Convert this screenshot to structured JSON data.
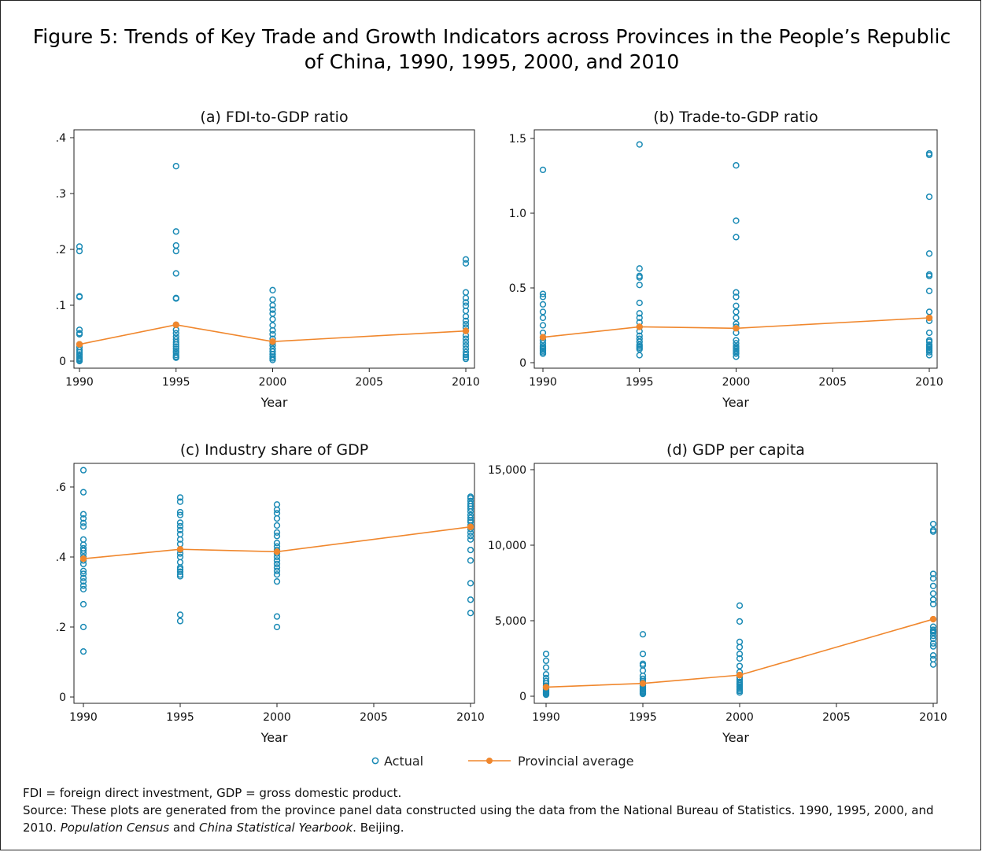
{
  "figure": {
    "title": "Figure 5: Trends of Key Trade and Growth Indicators across Provinces in the People’s Republic of China, 1990, 1995, 2000, and 2010"
  },
  "legend": {
    "actual": "Actual",
    "average": "Provincial average",
    "colors": {
      "actual": "#1a8ab5",
      "average": "#f0872d"
    }
  },
  "notes": {
    "abbreviations": "FDI = foreign direct investment, GDP = gross domestic product.",
    "source_prefix": "Source: These plots are generated from the province panel data constructed using the data from the National Bureau of Statistics. 1990, 1995, 2000, and 2010.",
    "source_italic_1": "Population Census",
    "source_and": "and",
    "source_italic_2": "China Statistical Yearbook",
    "source_suffix": ". Beijing."
  },
  "chart_data": [
    {
      "type": "scatter",
      "title": "(a) FDI-to-GDP ratio",
      "xlabel": "Year",
      "ylabel": "",
      "xlim": [
        1990,
        2010
      ],
      "ylim": [
        0,
        0.4
      ],
      "xticks": [
        1990,
        1995,
        2000,
        2005,
        2010
      ],
      "xtick_labels": [
        "1990",
        "1995",
        "2000",
        "2005",
        "2010"
      ],
      "yticks": [
        0,
        0.1,
        0.2,
        0.3,
        0.4
      ],
      "ytick_labels": [
        "0",
        ".1",
        ".2",
        ".3",
        ".4"
      ],
      "series": [
        {
          "name": "Actual",
          "style": "hollow-circle",
          "points": {
            "1990": [
              0.205,
              0.197,
              0.116,
              0.115,
              0.056,
              0.05,
              0.048,
              0.03,
              0.025,
              0.02,
              0.016,
              0.012,
              0.009,
              0.006,
              0.004,
              0.002,
              0.0
            ],
            "1995": [
              0.349,
              0.232,
              0.207,
              0.197,
              0.157,
              0.113,
              0.112,
              0.065,
              0.056,
              0.05,
              0.044,
              0.039,
              0.034,
              0.03,
              0.026,
              0.022,
              0.018,
              0.015,
              0.011,
              0.008,
              0.006
            ],
            "2000": [
              0.127,
              0.11,
              0.1,
              0.092,
              0.085,
              0.075,
              0.064,
              0.055,
              0.048,
              0.04,
              0.033,
              0.028,
              0.022,
              0.017,
              0.012,
              0.008,
              0.005,
              0.002
            ],
            "2010": [
              0.182,
              0.175,
              0.123,
              0.113,
              0.105,
              0.099,
              0.09,
              0.08,
              0.072,
              0.066,
              0.06,
              0.054,
              0.046,
              0.04,
              0.034,
              0.028,
              0.022,
              0.016,
              0.011,
              0.007,
              0.004
            ]
          }
        },
        {
          "name": "Provincial average",
          "style": "line-dot",
          "x": [
            1990,
            1995,
            2000,
            2010
          ],
          "y": [
            0.03,
            0.065,
            0.035,
            0.054
          ]
        }
      ]
    },
    {
      "type": "scatter",
      "title": "(b) Trade-to-GDP ratio",
      "xlabel": "Year",
      "ylabel": "",
      "xlim": [
        1990,
        2010
      ],
      "ylim": [
        0,
        1.5
      ],
      "xticks": [
        1990,
        1995,
        2000,
        2005,
        2010
      ],
      "xtick_labels": [
        "1990",
        "1995",
        "2000",
        "2005",
        "2010"
      ],
      "yticks": [
        0,
        0.5,
        1.0,
        1.5
      ],
      "ytick_labels": [
        "0",
        "0.5",
        "1.0",
        "1.5"
      ],
      "series": [
        {
          "name": "Actual",
          "style": "hollow-circle",
          "points": {
            "1990": [
              1.29,
              0.46,
              0.44,
              0.39,
              0.34,
              0.3,
              0.25,
              0.2,
              0.17,
              0.15,
              0.13,
              0.11,
              0.1,
              0.09,
              0.08,
              0.07,
              0.06
            ],
            "1995": [
              1.46,
              0.63,
              0.58,
              0.57,
              0.52,
              0.4,
              0.33,
              0.3,
              0.27,
              0.24,
              0.21,
              0.18,
              0.16,
              0.14,
              0.12,
              0.11,
              0.1,
              0.09,
              0.05
            ],
            "2000": [
              1.32,
              0.95,
              0.84,
              0.47,
              0.44,
              0.38,
              0.34,
              0.3,
              0.26,
              0.24,
              0.2,
              0.15,
              0.13,
              0.11,
              0.1,
              0.09,
              0.08,
              0.07,
              0.06,
              0.04
            ],
            "2010": [
              1.4,
              1.39,
              1.11,
              0.73,
              0.59,
              0.58,
              0.48,
              0.34,
              0.3,
              0.28,
              0.2,
              0.15,
              0.14,
              0.12,
              0.11,
              0.1,
              0.09,
              0.08,
              0.07,
              0.05
            ]
          }
        },
        {
          "name": "Provincial average",
          "style": "line-dot",
          "x": [
            1990,
            1995,
            2000,
            2010
          ],
          "y": [
            0.17,
            0.24,
            0.23,
            0.3
          ]
        }
      ]
    },
    {
      "type": "scatter",
      "title": "(c) Industry share of GDP",
      "xlabel": "Year",
      "ylabel": "",
      "xlim": [
        1990,
        2010
      ],
      "ylim": [
        0,
        0.6
      ],
      "xticks": [
        1990,
        1995,
        2000,
        2005,
        2010
      ],
      "xtick_labels": [
        "1990",
        "1995",
        "2000",
        "2005",
        "2010"
      ],
      "yticks": [
        0,
        0.2,
        0.4,
        0.6
      ],
      "ytick_labels": [
        "0",
        ".2",
        ".4",
        ".6"
      ],
      "series": [
        {
          "name": "Actual",
          "style": "hollow-circle",
          "points": {
            "1990": [
              0.648,
              0.585,
              0.522,
              0.51,
              0.497,
              0.487,
              0.45,
              0.435,
              0.425,
              0.418,
              0.41,
              0.4,
              0.39,
              0.38,
              0.36,
              0.352,
              0.34,
              0.33,
              0.318,
              0.308,
              0.265,
              0.2,
              0.13
            ],
            "1995": [
              0.57,
              0.558,
              0.528,
              0.52,
              0.498,
              0.488,
              0.477,
              0.465,
              0.45,
              0.437,
              0.42,
              0.41,
              0.4,
              0.385,
              0.37,
              0.365,
              0.358,
              0.35,
              0.345,
              0.235,
              0.217
            ],
            "2000": [
              0.55,
              0.535,
              0.525,
              0.51,
              0.49,
              0.47,
              0.46,
              0.44,
              0.43,
              0.42,
              0.41,
              0.4,
              0.39,
              0.38,
              0.37,
              0.36,
              0.35,
              0.33,
              0.23,
              0.2
            ],
            "2010": [
              0.572,
              0.568,
              0.56,
              0.552,
              0.545,
              0.538,
              0.53,
              0.52,
              0.512,
              0.505,
              0.5,
              0.49,
              0.48,
              0.47,
              0.46,
              0.45,
              0.42,
              0.39,
              0.325,
              0.278,
              0.24
            ]
          }
        },
        {
          "name": "Provincial average",
          "style": "line-dot",
          "x": [
            1990,
            1995,
            2000,
            2010
          ],
          "y": [
            0.395,
            0.422,
            0.415,
            0.486
          ]
        }
      ]
    },
    {
      "type": "scatter",
      "title": "(d) GDP per capita",
      "xlabel": "Year",
      "ylabel": "",
      "xlim": [
        1990,
        2010
      ],
      "ylim": [
        0,
        15000
      ],
      "xticks": [
        1990,
        1995,
        2000,
        2005,
        2010
      ],
      "xtick_labels": [
        "1990",
        "1995",
        "2000",
        "2005",
        "2010"
      ],
      "yticks": [
        0,
        5000,
        10000,
        15000
      ],
      "ytick_labels": [
        "0",
        "5,000",
        "10,000",
        "15,000"
      ],
      "series": [
        {
          "name": "Actual",
          "style": "hollow-circle",
          "points": {
            "1990": [
              2800,
              2350,
              1900,
              1450,
              1200,
              1000,
              850,
              700,
              600,
              500,
              420,
              360,
              300,
              250,
              200,
              150,
              100
            ],
            "1995": [
              4100,
              2800,
              2150,
              2050,
              1700,
              1350,
              1150,
              1000,
              900,
              800,
              700,
              600,
              520,
              450,
              380,
              320,
              260,
              200,
              150
            ],
            "2000": [
              6000,
              4950,
              3600,
              3250,
              2800,
              2500,
              2000,
              1600,
              1400,
              1250,
              1100,
              950,
              850,
              750,
              650,
              550,
              450,
              350,
              250
            ],
            "2010": [
              11400,
              11000,
              10900,
              8100,
              7800,
              7300,
              6800,
              6400,
              6100,
              4600,
              4400,
              4300,
              4200,
              4000,
              3800,
              3500,
              3300,
              2700,
              2450,
              2100
            ]
          }
        },
        {
          "name": "Provincial average",
          "style": "line-dot",
          "x": [
            1990,
            1995,
            2000,
            2010
          ],
          "y": [
            600,
            850,
            1400,
            5100
          ]
        }
      ]
    }
  ]
}
